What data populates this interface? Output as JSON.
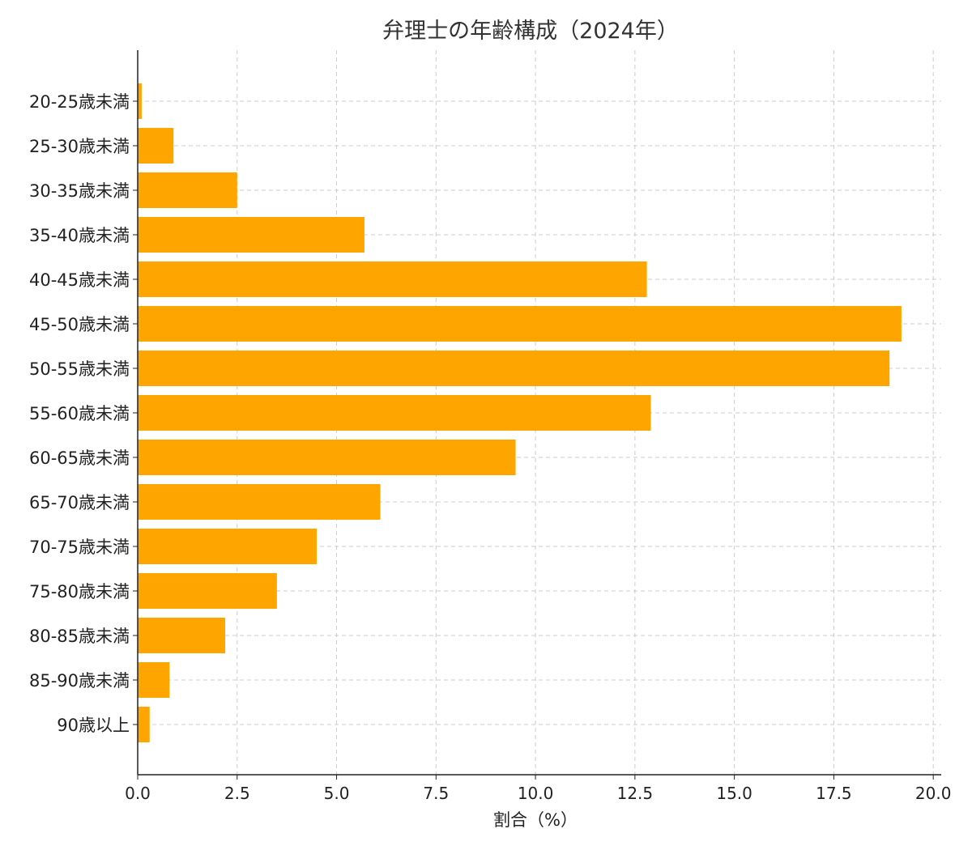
{
  "chart_data": {
    "type": "bar",
    "orientation": "horizontal",
    "title": "弁理士の年齢構成（2024年）",
    "xlabel": "割合（%）",
    "ylabel": "",
    "categories": [
      "20-25歳未満",
      "25-30歳未満",
      "30-35歳未満",
      "35-40歳未満",
      "40-45歳未満",
      "45-50歳未満",
      "50-55歳未満",
      "55-60歳未満",
      "60-65歳未満",
      "65-70歳未満",
      "70-75歳未満",
      "75-80歳未満",
      "80-85歳未満",
      "85-90歳未満",
      "90歳以上"
    ],
    "values": [
      0.1,
      0.9,
      2.5,
      5.7,
      12.8,
      19.2,
      18.9,
      12.9,
      9.5,
      6.1,
      4.5,
      3.5,
      2.2,
      0.8,
      0.3
    ],
    "xlim": [
      0,
      20.2
    ],
    "xticks": [
      "0.0",
      "2.5",
      "5.0",
      "7.5",
      "10.0",
      "12.5",
      "15.0",
      "17.5",
      "20.0"
    ],
    "grid": true,
    "bar_color": "#FFA500"
  }
}
